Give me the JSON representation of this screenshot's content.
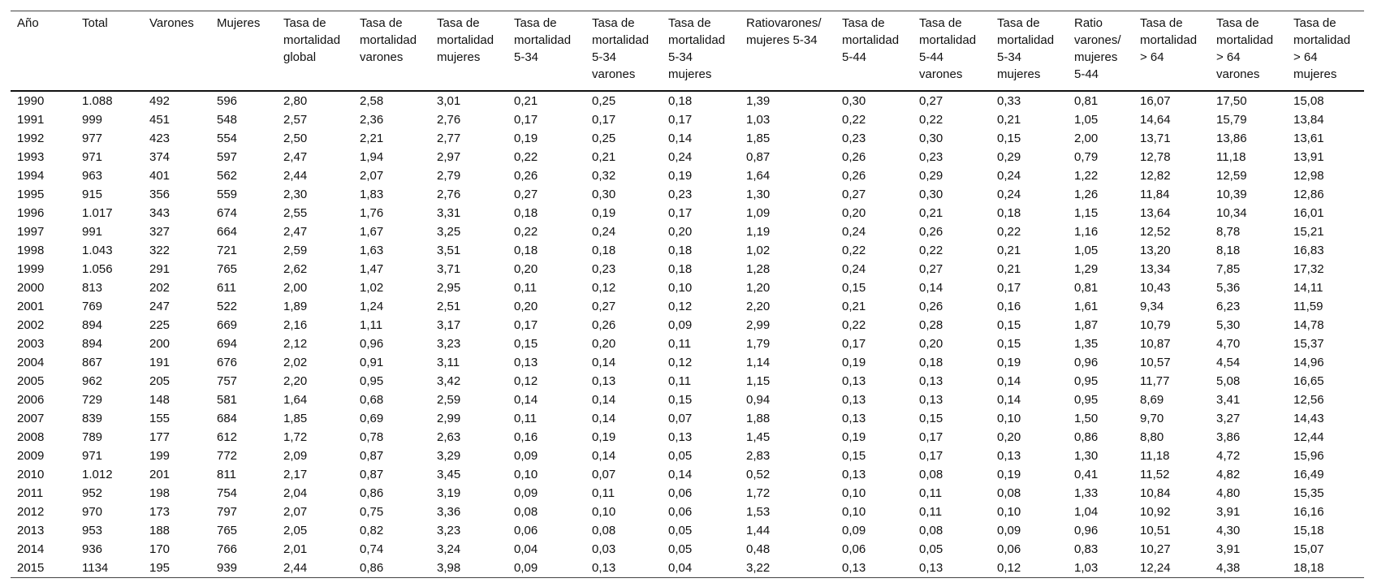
{
  "table": {
    "header": [
      "Año",
      "Total",
      "Varones",
      "Mujeres",
      "Tasa de mortalidad global",
      "Tasa de mortalidad varones",
      "Tasa de mortalidad mujeres",
      "Tasa de mortalidad 5-34",
      "Tasa de mortalidad 5-34 varones",
      "Tasa de mortalidad 5-34 mujeres",
      "Ratiovarones/ mujeres 5-34",
      "Tasa de mortalidad 5-44",
      "Tasa de mortalidad 5-44 varones",
      "Tasa de mortalidad 5-34 mujeres",
      "Ratio varones/ mujeres 5-44",
      "Tasa de mortalidad > 64",
      "Tasa de mortalidad > 64 varones",
      "Tasa de mortalidad > 64 mujeres"
    ],
    "rows": [
      [
        "1990",
        "1.088",
        "492",
        "596",
        "2,80",
        "2,58",
        "3,01",
        "0,21",
        "0,25",
        "0,18",
        "1,39",
        "0,30",
        "0,27",
        "0,33",
        "0,81",
        "16,07",
        "17,50",
        "15,08"
      ],
      [
        "1991",
        "999",
        "451",
        "548",
        "2,57",
        "2,36",
        "2,76",
        "0,17",
        "0,17",
        "0,17",
        "1,03",
        "0,22",
        "0,22",
        "0,21",
        "1,05",
        "14,64",
        "15,79",
        "13,84"
      ],
      [
        "1992",
        "977",
        "423",
        "554",
        "2,50",
        "2,21",
        "2,77",
        "0,19",
        "0,25",
        "0,14",
        "1,85",
        "0,23",
        "0,30",
        "0,15",
        "2,00",
        "13,71",
        "13,86",
        "13,61"
      ],
      [
        "1993",
        "971",
        "374",
        "597",
        "2,47",
        "1,94",
        "2,97",
        "0,22",
        "0,21",
        "0,24",
        "0,87",
        "0,26",
        "0,23",
        "0,29",
        "0,79",
        "12,78",
        "11,18",
        "13,91"
      ],
      [
        "1994",
        "963",
        "401",
        "562",
        "2,44",
        "2,07",
        "2,79",
        "0,26",
        "0,32",
        "0,19",
        "1,64",
        "0,26",
        "0,29",
        "0,24",
        "1,22",
        "12,82",
        "12,59",
        "12,98"
      ],
      [
        "1995",
        "915",
        "356",
        "559",
        "2,30",
        "1,83",
        "2,76",
        "0,27",
        "0,30",
        "0,23",
        "1,30",
        "0,27",
        "0,30",
        "0,24",
        "1,26",
        "11,84",
        "10,39",
        "12,86"
      ],
      [
        "1996",
        "1.017",
        "343",
        "674",
        "2,55",
        "1,76",
        "3,31",
        "0,18",
        "0,19",
        "0,17",
        "1,09",
        "0,20",
        "0,21",
        "0,18",
        "1,15",
        "13,64",
        "10,34",
        "16,01"
      ],
      [
        "1997",
        "991",
        "327",
        "664",
        "2,47",
        "1,67",
        "3,25",
        "0,22",
        "0,24",
        "0,20",
        "1,19",
        "0,24",
        "0,26",
        "0,22",
        "1,16",
        "12,52",
        "8,78",
        "15,21"
      ],
      [
        "1998",
        "1.043",
        "322",
        "721",
        "2,59",
        "1,63",
        "3,51",
        "0,18",
        "0,18",
        "0,18",
        "1,02",
        "0,22",
        "0,22",
        "0,21",
        "1,05",
        "13,20",
        "8,18",
        "16,83"
      ],
      [
        "1999",
        "1.056",
        "291",
        "765",
        "2,62",
        "1,47",
        "3,71",
        "0,20",
        "0,23",
        "0,18",
        "1,28",
        "0,24",
        "0,27",
        "0,21",
        "1,29",
        "13,34",
        "7,85",
        "17,32"
      ],
      [
        "2000",
        "813",
        "202",
        "611",
        "2,00",
        "1,02",
        "2,95",
        "0,11",
        "0,12",
        "0,10",
        "1,20",
        "0,15",
        "0,14",
        "0,17",
        "0,81",
        "10,43",
        "5,36",
        "14,11"
      ],
      [
        "2001",
        "769",
        "247",
        "522",
        "1,89",
        "1,24",
        "2,51",
        "0,20",
        "0,27",
        "0,12",
        "2,20",
        "0,21",
        "0,26",
        "0,16",
        "1,61",
        "9,34",
        "6,23",
        "11,59"
      ],
      [
        "2002",
        "894",
        "225",
        "669",
        "2,16",
        "1,11",
        "3,17",
        "0,17",
        "0,26",
        "0,09",
        "2,99",
        "0,22",
        "0,28",
        "0,15",
        "1,87",
        "10,79",
        "5,30",
        "14,78"
      ],
      [
        "2003",
        "894",
        "200",
        "694",
        "2,12",
        "0,96",
        "3,23",
        "0,15",
        "0,20",
        "0,11",
        "1,79",
        "0,17",
        "0,20",
        "0,15",
        "1,35",
        "10,87",
        "4,70",
        "15,37"
      ],
      [
        "2004",
        "867",
        "191",
        "676",
        "2,02",
        "0,91",
        "3,11",
        "0,13",
        "0,14",
        "0,12",
        "1,14",
        "0,19",
        "0,18",
        "0,19",
        "0,96",
        "10,57",
        "4,54",
        "14,96"
      ],
      [
        "2005",
        "962",
        "205",
        "757",
        "2,20",
        "0,95",
        "3,42",
        "0,12",
        "0,13",
        "0,11",
        "1,15",
        "0,13",
        "0,13",
        "0,14",
        "0,95",
        "11,77",
        "5,08",
        "16,65"
      ],
      [
        "2006",
        "729",
        "148",
        "581",
        "1,64",
        "0,68",
        "2,59",
        "0,14",
        "0,14",
        "0,15",
        "0,94",
        "0,13",
        "0,13",
        "0,14",
        "0,95",
        "8,69",
        "3,41",
        "12,56"
      ],
      [
        "2007",
        "839",
        "155",
        "684",
        "1,85",
        "0,69",
        "2,99",
        "0,11",
        "0,14",
        "0,07",
        "1,88",
        "0,13",
        "0,15",
        "0,10",
        "1,50",
        "9,70",
        "3,27",
        "14,43"
      ],
      [
        "2008",
        "789",
        "177",
        "612",
        "1,72",
        "0,78",
        "2,63",
        "0,16",
        "0,19",
        "0,13",
        "1,45",
        "0,19",
        "0,17",
        "0,20",
        "0,86",
        "8,80",
        "3,86",
        "12,44"
      ],
      [
        "2009",
        "971",
        "199",
        "772",
        "2,09",
        "0,87",
        "3,29",
        "0,09",
        "0,14",
        "0,05",
        "2,83",
        "0,15",
        "0,17",
        "0,13",
        "1,30",
        "11,18",
        "4,72",
        "15,96"
      ],
      [
        "2010",
        "1.012",
        "201",
        "811",
        "2,17",
        "0,87",
        "3,45",
        "0,10",
        "0,07",
        "0,14",
        "0,52",
        "0,13",
        "0,08",
        "0,19",
        "0,41",
        "11,52",
        "4,82",
        "16,49"
      ],
      [
        "2011",
        "952",
        "198",
        "754",
        "2,04",
        "0,86",
        "3,19",
        "0,09",
        "0,11",
        "0,06",
        "1,72",
        "0,10",
        "0,11",
        "0,08",
        "1,33",
        "10,84",
        "4,80",
        "15,35"
      ],
      [
        "2012",
        "970",
        "173",
        "797",
        "2,07",
        "0,75",
        "3,36",
        "0,08",
        "0,10",
        "0,06",
        "1,53",
        "0,10",
        "0,11",
        "0,10",
        "1,04",
        "10,92",
        "3,91",
        "16,16"
      ],
      [
        "2013",
        "953",
        "188",
        "765",
        "2,05",
        "0,82",
        "3,23",
        "0,06",
        "0,08",
        "0,05",
        "1,44",
        "0,09",
        "0,08",
        "0,09",
        "0,96",
        "10,51",
        "4,30",
        "15,18"
      ],
      [
        "2014",
        "936",
        "170",
        "766",
        "2,01",
        "0,74",
        "3,24",
        "0,04",
        "0,03",
        "0,05",
        "0,48",
        "0,06",
        "0,05",
        "0,06",
        "0,83",
        "10,27",
        "3,91",
        "15,07"
      ],
      [
        "2015",
        "1134",
        "195",
        "939",
        "2,44",
        "0,86",
        "3,98",
        "0,09",
        "0,13",
        "0,04",
        "3,22",
        "0,13",
        "0,13",
        "0,12",
        "1,03",
        "12,24",
        "4,38",
        "18,18"
      ]
    ]
  }
}
